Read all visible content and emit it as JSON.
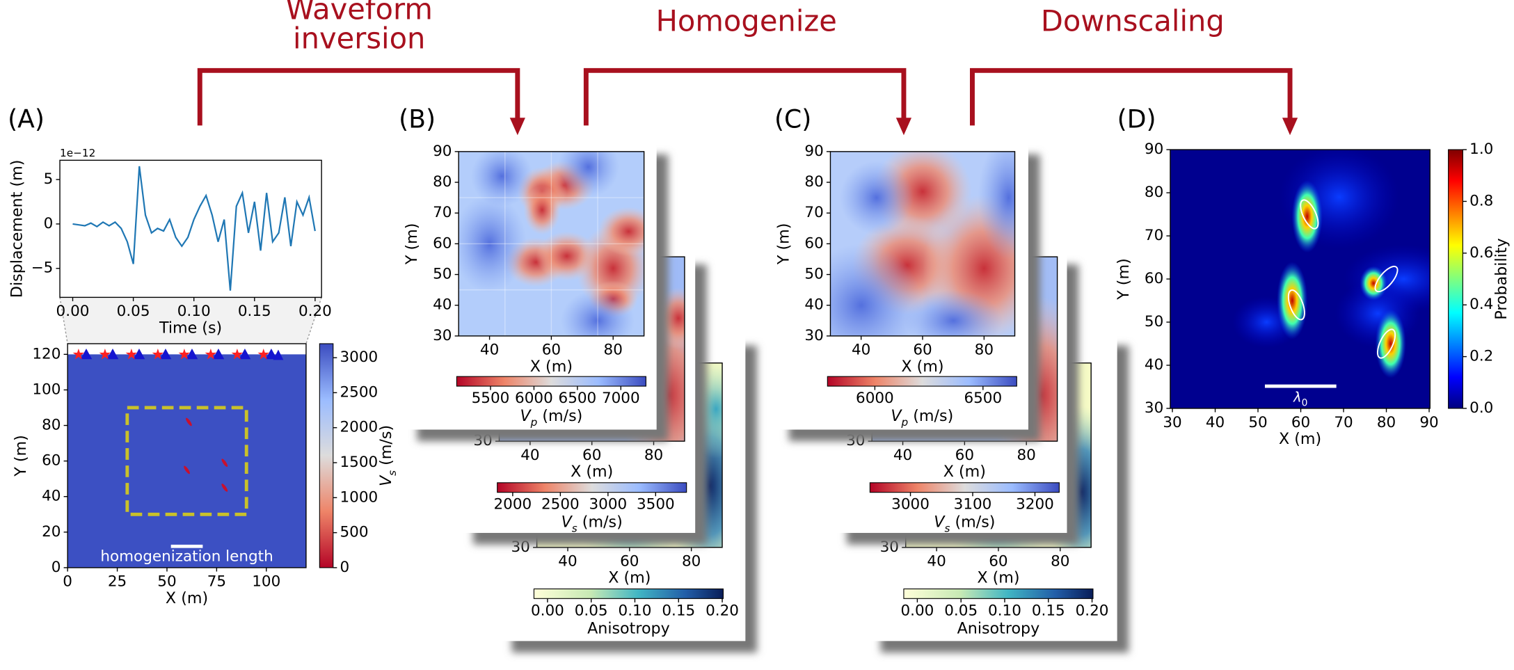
{
  "step_labels": [
    [
      "Waveform",
      "inversion"
    ],
    [
      "Homogenize"
    ],
    [
      "Downscaling"
    ]
  ],
  "panel_labels": [
    "(A)",
    "(B)",
    "(C)",
    "(D)"
  ],
  "chart_data": [
    {
      "type": "line",
      "exponent_label": "1e−12",
      "xlabel": "Time (s)",
      "ylabel": "Displacement (m)",
      "color": "#1f77b4",
      "x": [
        0,
        0.005,
        0.01,
        0.015,
        0.02,
        0.025,
        0.03,
        0.035,
        0.04,
        0.045,
        0.05,
        0.055,
        0.06,
        0.065,
        0.07,
        0.075,
        0.08,
        0.085,
        0.09,
        0.095,
        0.1,
        0.105,
        0.11,
        0.115,
        0.12,
        0.125,
        0.13,
        0.135,
        0.14,
        0.145,
        0.15,
        0.155,
        0.16,
        0.165,
        0.17,
        0.175,
        0.18,
        0.185,
        0.19,
        0.195,
        0.2
      ],
      "values": [
        0,
        -0.1,
        -0.2,
        0.1,
        -0.3,
        0.2,
        -0.2,
        0.2,
        -0.5,
        -2,
        -4.5,
        6.5,
        1,
        -1,
        -0.5,
        -0.8,
        0.5,
        -1.5,
        -2.5,
        -1.5,
        0.5,
        2,
        3.2,
        1,
        -2,
        0.5,
        -7.5,
        2,
        3.5,
        -1,
        2.5,
        -3,
        3.5,
        -2,
        -1,
        3,
        -2.5,
        2.5,
        1,
        3,
        -0.8
      ],
      "xlim": [
        -0.0106,
        0.2053
      ],
      "ylim": [
        -8.26,
        7.17
      ],
      "xticks": [
        {
          "value": 0,
          "label": "0.00"
        },
        {
          "value": 0.05,
          "label": "0.05"
        },
        {
          "value": 0.1,
          "label": "0.10"
        },
        {
          "value": 0.15,
          "label": "0.15"
        },
        {
          "value": 0.2,
          "label": "0.20"
        }
      ],
      "yticks": [
        5,
        0,
        {
          "value": -5,
          "label": "−5"
        }
      ]
    },
    {
      "type": "heatmap",
      "xlabel": "X (m)",
      "ylabel": "Y (m)",
      "annotation": "homogenization length",
      "xlim": [
        0,
        120
      ],
      "ylim": [
        0,
        126
      ],
      "xticks": [
        0,
        25,
        50,
        75,
        100
      ],
      "yticks": [
        0,
        20,
        40,
        60,
        80,
        100,
        120
      ],
      "colorbar": {
        "label": [
          "V",
          "s",
          " (m/s)"
        ],
        "lim": [
          0,
          3200
        ],
        "ticks": [
          0,
          500,
          1000,
          1500,
          2000,
          2500,
          3000
        ],
        "cmap": "coolwarm"
      }
    },
    {
      "type": "heatmap",
      "xlabel": "X (m)",
      "xlim": [
        30,
        90
      ],
      "ylim": [
        30,
        90
      ],
      "xticks": [
        40,
        60,
        80
      ],
      "yticks": [
        30
      ],
      "colorbar": {
        "label": [
          "Anisotropy"
        ],
        "lim": [
          -0.0155,
          0.2011
        ],
        "ticks": [
          {
            "value": 0,
            "label": "0.00"
          },
          {
            "value": 0.05,
            "label": "0.05"
          },
          {
            "value": 0.1,
            "label": "0.10"
          },
          {
            "value": 0.15,
            "label": "0.15"
          },
          {
            "value": 0.2,
            "label": "0.20"
          }
        ],
        "cmap": "ylgnbu"
      }
    },
    {
      "type": "heatmap",
      "xlabel": "X (m)",
      "xlim": [
        30,
        90
      ],
      "ylim": [
        30,
        90
      ],
      "xticks": [
        40,
        60,
        80
      ],
      "yticks": [
        30
      ],
      "colorbar": {
        "label": [
          "V",
          "s",
          " (m/s)"
        ],
        "lim": [
          1838,
          3824
        ],
        "ticks": [
          2000,
          2500,
          3000,
          3500
        ],
        "cmap": "coolwarm"
      }
    },
    {
      "type": "heatmap",
      "xlabel": "X (m)",
      "ylabel": "Y (m)",
      "xlim": [
        30,
        90
      ],
      "ylim": [
        30,
        90
      ],
      "xticks": [
        40,
        60,
        80
      ],
      "yticks": [
        30,
        40,
        50,
        60,
        70,
        80,
        90
      ],
      "colorbar": {
        "label": [
          "V",
          "p",
          " (m/s)"
        ],
        "lim": [
          5111,
          7289
        ],
        "ticks": [
          5500,
          6000,
          6500,
          7000
        ],
        "cmap": "coolwarm"
      }
    },
    {
      "type": "heatmap",
      "xlabel": "X (m)",
      "xlim": [
        30,
        90
      ],
      "ylim": [
        30,
        90
      ],
      "xticks": [
        40,
        60,
        80
      ],
      "yticks": [
        30
      ],
      "colorbar": {
        "label": [
          "Anisotropy"
        ],
        "lim": [
          -0.0155,
          0.2011
        ],
        "ticks": [
          {
            "value": 0,
            "label": "0.00"
          },
          {
            "value": 0.05,
            "label": "0.05"
          },
          {
            "value": 0.1,
            "label": "0.10"
          },
          {
            "value": 0.15,
            "label": "0.15"
          },
          {
            "value": 0.2,
            "label": "0.20"
          }
        ],
        "cmap": "ylgnbu"
      }
    },
    {
      "type": "heatmap",
      "xlabel": "X (m)",
      "xlim": [
        30,
        90
      ],
      "ylim": [
        30,
        90
      ],
      "xticks": [
        40,
        60,
        80
      ],
      "yticks": [
        30
      ],
      "colorbar": {
        "label": [
          "V",
          "s",
          " (m/s)"
        ],
        "lim": [
          2935,
          3239
        ],
        "ticks": [
          3000,
          3100,
          3200
        ],
        "cmap": "coolwarm"
      }
    },
    {
      "type": "heatmap",
      "xlabel": "X (m)",
      "ylabel": "Y (m)",
      "xlim": [
        30,
        90
      ],
      "ylim": [
        30,
        90
      ],
      "xticks": [
        40,
        60,
        80
      ],
      "yticks": [
        30,
        40,
        50,
        60,
        70,
        80,
        90
      ],
      "colorbar": {
        "label": [
          "V",
          "p",
          " (m/s)"
        ],
        "lim": [
          5781,
          6656
        ],
        "ticks": [
          6000,
          6500
        ],
        "cmap": "coolwarm"
      }
    },
    {
      "type": "heatmap",
      "xlabel": "X (m)",
      "ylabel": "Y (m)",
      "annotation": [
        "λ",
        "0"
      ],
      "xlim": [
        29.5,
        90.2
      ],
      "ylim": [
        30,
        90
      ],
      "xticks": [
        30,
        40,
        50,
        60,
        70,
        80,
        90
      ],
      "yticks": [
        30,
        40,
        50,
        60,
        70,
        80,
        90
      ],
      "colorbar": {
        "label": [
          "Probability"
        ],
        "lim": [
          0,
          1
        ],
        "ticks": [
          {
            "value": 0,
            "label": "0.0"
          },
          {
            "value": 0.2,
            "label": "0.2"
          },
          {
            "value": 0.4,
            "label": "0.4"
          },
          {
            "value": 0.6,
            "label": "0.6"
          },
          {
            "value": 0.8,
            "label": "0.8"
          },
          {
            "value": 1,
            "label": "1.0"
          }
        ],
        "cmap": "jet"
      }
    }
  ]
}
